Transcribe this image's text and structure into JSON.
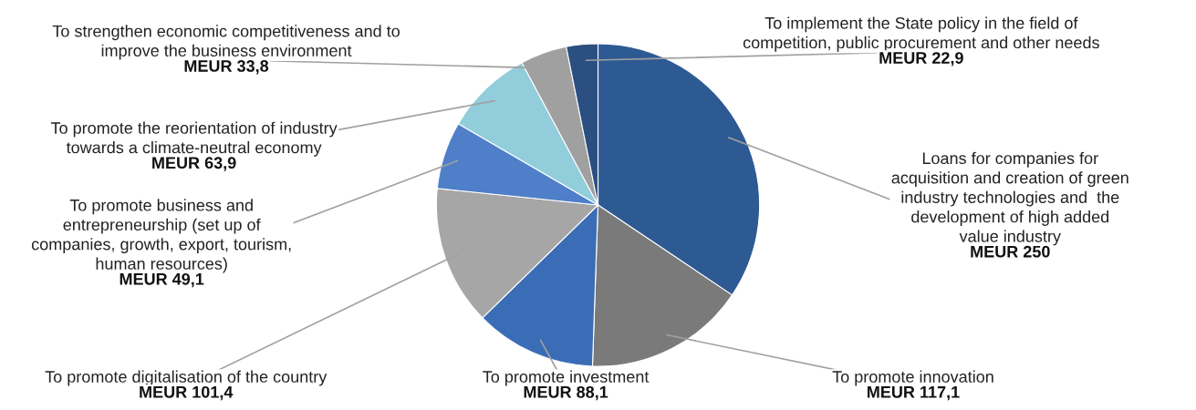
{
  "chart_data": {
    "type": "pie",
    "categories": [
      "Loans for companies for\nacquisition and creation of green\nindustry technologies and  the\ndevelopment of high added\nvalue industry",
      "To promote innovation",
      "To promote investment",
      "To promote digitalisation of the country",
      "To promote business and\nentrepreneurship (set up of\ncompanies, growth, export, tourism,\nhuman resources)",
      "To promote the reorientation of industry\ntowards a climate-neutral economy",
      "To strengthen economic competitiveness and to\nimprove the business environment",
      "To implement the State policy in the field of\ncompetition, public procurement and other needs"
    ],
    "values": [
      250,
      117.1,
      88.1,
      101.4,
      49.1,
      63.9,
      33.8,
      22.9
    ],
    "value_labels": [
      "MEUR 250",
      "MEUR 117,1",
      "MEUR 88,1",
      "MEUR 101,4",
      "MEUR 49,1",
      "MEUR 63,9",
      "MEUR 33,8",
      "MEUR 22,9"
    ],
    "colors": [
      "#2e5a94",
      "#7a7a7a",
      "#3a6db5",
      "#a6a6a6",
      "#4f7fc8",
      "#92cddc",
      "#a0a0a0",
      "#2b4f80"
    ]
  }
}
